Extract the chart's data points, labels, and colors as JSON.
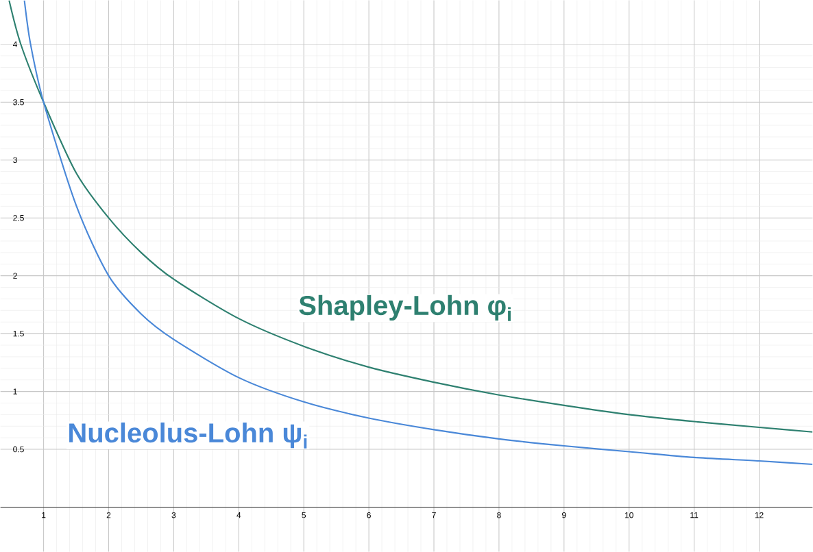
{
  "chart_data": {
    "type": "line",
    "xlim": [
      0.337,
      12.82
    ],
    "ylim": [
      -0.385,
      4.38
    ],
    "xticks": [
      1,
      2,
      3,
      4,
      5,
      6,
      7,
      8,
      9,
      10,
      11,
      12
    ],
    "yticks": [
      0.5,
      1,
      1.5,
      2,
      2.5,
      3,
      3.5,
      4
    ],
    "grid": true,
    "marker": "none",
    "line_style": "solid",
    "series": [
      {
        "name": "Shapley-Lohn φ$_{i}$",
        "color": "#2e8070",
        "x": [
          0.47,
          0.65,
          1,
          1.5,
          2,
          2.5,
          3,
          4,
          5,
          6,
          7,
          8,
          9,
          10,
          11,
          12,
          12.82
        ],
        "values": [
          4.38,
          4.0,
          3.5,
          2.89,
          2.5,
          2.2,
          1.97,
          1.63,
          1.39,
          1.21,
          1.08,
          0.97,
          0.88,
          0.8,
          0.74,
          0.69,
          0.65
        ]
      },
      {
        "name": "Nucleolus-Lohn ψ$_{i}$",
        "color": "#4a88d8",
        "x": [
          0.705,
          0.8,
          1,
          1.5,
          2,
          2.5,
          3,
          4,
          5,
          6,
          7,
          8,
          9,
          10,
          11,
          12,
          12.82
        ],
        "values": [
          4.38,
          4.0,
          3.5,
          2.61,
          2.0,
          1.67,
          1.45,
          1.12,
          0.91,
          0.77,
          0.67,
          0.59,
          0.53,
          0.48,
          0.43,
          0.4,
          0.37
        ]
      }
    ]
  }
}
